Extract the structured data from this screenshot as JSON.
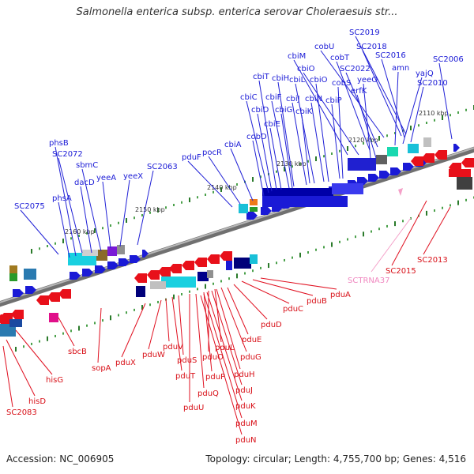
{
  "title": "Salmonella enterica subsp. enterica serovar Choleraesuis str...",
  "accession": "Accession: NC_006905",
  "topology": "Topology: circular; Length: 4,755,700 bp; Genes: 4,516",
  "colors": {
    "forward": "#1a1ad6",
    "reverse": "#e8101a",
    "rna": "#f4a0c8",
    "backbone": "#808080"
  },
  "ticks": [
    "2110 kbp",
    "2120 kbp",
    "2130 kbp",
    "2140 kbp",
    "2150 kbp",
    "2160 kbp"
  ],
  "forward_genes": [
    "SC2019",
    "SC2018",
    "cobU",
    "SC2016",
    "SC2006",
    "cbiM",
    "cobT",
    "cbiO",
    "SC2022",
    "amn",
    "yajQ",
    "SC2010",
    "cbiT",
    "cbiH",
    "cbiL",
    "cbiO",
    "cobS",
    "yeeO",
    "cbiC",
    "cbiF",
    "cbiJ",
    "cbiN",
    "cbiP",
    "erfK",
    "cbiD",
    "cbiG",
    "cbiK",
    "cbiE",
    "cobD",
    "cbiA",
    "pocR",
    "pduF",
    "phsB",
    "SC2072",
    "sbmC",
    "dacD",
    "yeeA",
    "yeeX",
    "SC2063",
    "phsA",
    "SC2075"
  ],
  "reverse_genes": [
    "SC2013",
    "SC2015",
    "pduA",
    "pduB",
    "pduC",
    "pduD",
    "pduE",
    "pduG",
    "pduL",
    "pduH",
    "pduO",
    "pduJ",
    "pduP",
    "pduK",
    "pduQ",
    "pduM",
    "pduU",
    "pduN",
    "pduS",
    "pduT",
    "pduV",
    "pduW",
    "pduX",
    "sopA",
    "sbcB",
    "hisG",
    "hisD",
    "SC2083"
  ],
  "rna_genes": [
    "SCTRNA37"
  ]
}
